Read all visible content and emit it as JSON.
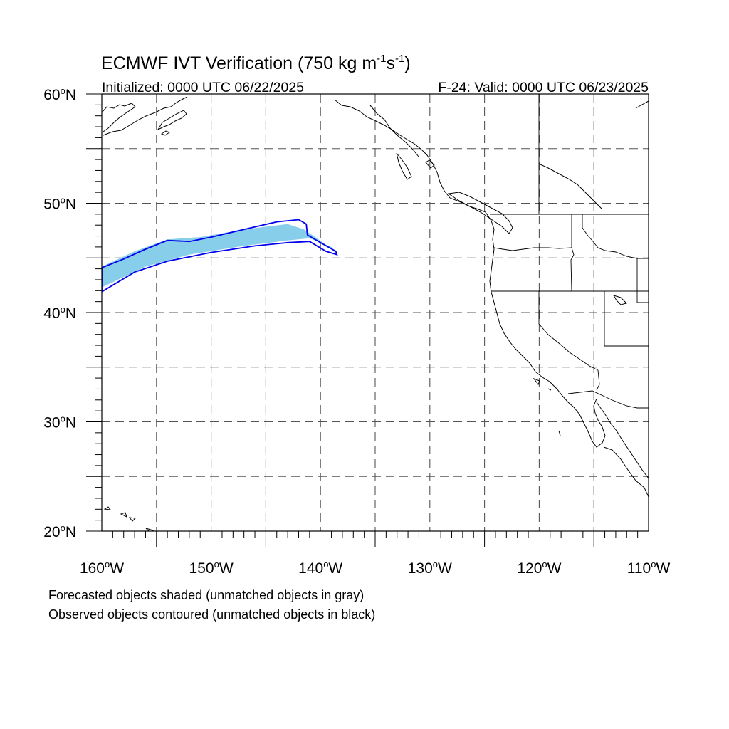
{
  "title": {
    "main": "ECMWF IVT Verification (750 kg m",
    "exp1": "-1",
    "mid": "s",
    "exp2": "-1",
    "close": ")"
  },
  "initialized": "Initialized: 0000 UTC 06/22/2025",
  "valid": "F-24: Valid: 0000 UTC 06/23/2025",
  "map": {
    "projection": "cylindrical equidistant",
    "lon_range": [
      -160,
      -110
    ],
    "lat_range": [
      20,
      60
    ],
    "grid": "dashed every 5 degrees",
    "lat_labels": [
      {
        "value": 60,
        "num": "60",
        "unit": "o",
        "hem": "N"
      },
      {
        "value": 50,
        "num": "50",
        "unit": "o",
        "hem": "N"
      },
      {
        "value": 40,
        "num": "40",
        "unit": "o",
        "hem": "N"
      },
      {
        "value": 30,
        "num": "30",
        "unit": "o",
        "hem": "N"
      },
      {
        "value": 20,
        "num": "20",
        "unit": "o",
        "hem": "N"
      }
    ],
    "lon_labels": [
      {
        "value": -160,
        "num": "160",
        "unit": "o",
        "hem": "W"
      },
      {
        "value": -150,
        "num": "150",
        "unit": "o",
        "hem": "W"
      },
      {
        "value": -140,
        "num": "140",
        "unit": "o",
        "hem": "W"
      },
      {
        "value": -130,
        "num": "130",
        "unit": "o",
        "hem": "W"
      },
      {
        "value": -120,
        "num": "120",
        "unit": "o",
        "hem": "W"
      },
      {
        "value": -110,
        "num": "110",
        "unit": "o",
        "hem": "W"
      }
    ],
    "colors": {
      "forecast_fill": "#87ceeb",
      "observed_contour": "#0000ee",
      "coast": "#000000",
      "grid": "#555555"
    },
    "forecast_object": {
      "matched": true,
      "outline": [
        [
          -160,
          42.3
        ],
        [
          -156,
          44.2
        ],
        [
          -152,
          45.3
        ],
        [
          -147,
          46.1
        ],
        [
          -143,
          46.6
        ],
        [
          -141,
          46.8
        ],
        [
          -139,
          46.0
        ],
        [
          -138.6,
          45.4
        ],
        [
          -139.5,
          46.2
        ],
        [
          -141.5,
          47.6
        ],
        [
          -143,
          48.1
        ],
        [
          -147,
          47.6
        ],
        [
          -151,
          46.9
        ],
        [
          -154,
          46.7
        ],
        [
          -157,
          45.6
        ],
        [
          -160,
          44.2
        ]
      ]
    },
    "observed_object": {
      "matched": true,
      "outline": [
        [
          -160,
          41.9
        ],
        [
          -157,
          43.7
        ],
        [
          -154,
          44.7
        ],
        [
          -150,
          45.5
        ],
        [
          -146,
          46.1
        ],
        [
          -143,
          46.4
        ],
        [
          -141,
          46.5
        ],
        [
          -139.5,
          45.6
        ],
        [
          -138.5,
          45.3
        ],
        [
          -138.6,
          45.6
        ],
        [
          -140,
          46.4
        ],
        [
          -141.2,
          47.1
        ],
        [
          -141.3,
          48.1
        ],
        [
          -142,
          48.5
        ],
        [
          -144,
          48.3
        ],
        [
          -147,
          47.6
        ],
        [
          -150,
          46.9
        ],
        [
          -152,
          46.5
        ],
        [
          -154,
          46.6
        ],
        [
          -156,
          45.8
        ],
        [
          -158,
          44.9
        ],
        [
          -160,
          44.1
        ]
      ]
    }
  },
  "notes": [
    "Forecasted objects shaded (unmatched objects in gray)",
    "Observed objects contoured (unmatched objects in black)"
  ]
}
